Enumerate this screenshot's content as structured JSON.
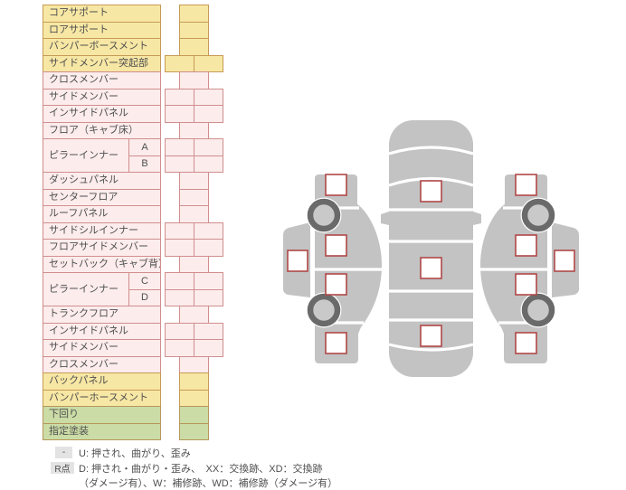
{
  "colors": {
    "yellow_fill": "#F7E7A4",
    "yellow_border": "#C79A56",
    "pink_fill": "#FCECEC",
    "pink_border": "#D18E8E",
    "green_fill": "#CBDCA6",
    "green_border": "#B7975B",
    "car_gray": "#C3C3C3",
    "marker_border": "#B04848",
    "legend_box_bg": "#E3E3E3",
    "text": "#4F4F4F"
  },
  "table": {
    "rows": [
      {
        "label": "コアサポート",
        "color": "yellow",
        "cells": 1
      },
      {
        "label": "ロアサポート",
        "color": "yellow",
        "cells": 1
      },
      {
        "label": "バンパーボースメント",
        "color": "yellow",
        "cells": 1
      },
      {
        "label": "サイドメンバー突起部",
        "color": "yellow",
        "cells": 2
      },
      {
        "label": "クロスメンバー",
        "color": "pink",
        "cells": 1
      },
      {
        "label": "サイドメンバー",
        "color": "pink",
        "cells": 2
      },
      {
        "label": "インサイドパネル",
        "color": "pink",
        "cells": 2
      },
      {
        "label": "フロア（キャブ床）",
        "color": "pink",
        "cells": 1
      },
      {
        "label": "ピラーインナー",
        "color": "pink",
        "cells": 2,
        "subs": [
          "A",
          "B"
        ]
      },
      {
        "label": "ダッシュパネル",
        "color": "pink",
        "cells": 1
      },
      {
        "label": "センターフロア",
        "color": "pink",
        "cells": 1
      },
      {
        "label": "ルーフパネル",
        "color": "pink",
        "cells": 1
      },
      {
        "label": "サイドシルインナー",
        "color": "pink",
        "cells": 2
      },
      {
        "label": "フロアサイドメンバー",
        "color": "pink",
        "cells": 2
      },
      {
        "label": "セットバック（キャブ背）",
        "color": "pink",
        "cells": 1
      },
      {
        "label": "ピラーインナー",
        "color": "pink",
        "cells": 2,
        "subs": [
          "C",
          "D"
        ]
      },
      {
        "label": "トランクフロア",
        "color": "pink",
        "cells": 1
      },
      {
        "label": "インサイドパネル",
        "color": "pink",
        "cells": 2
      },
      {
        "label": "サイドメンバー",
        "color": "pink",
        "cells": 2
      },
      {
        "label": "クロスメンバー",
        "color": "pink",
        "cells": 1
      },
      {
        "label": "バックパネル",
        "color": "yellow",
        "cells": 1
      },
      {
        "label": "バンパーホースメント",
        "color": "yellow",
        "cells": 1
      },
      {
        "label": "下回り",
        "color": "green",
        "cells": 1
      },
      {
        "label": "指定塗装",
        "color": "green",
        "cells": 1
      }
    ]
  },
  "legend": {
    "row1_key": "-",
    "row1_text": "U: 押され、曲がり、歪み",
    "row2_key": "R点",
    "row2_text": "D: 押され・曲がり・歪み、　XX：交換跡、XD：交換跡",
    "row3_text": "（ダメージ有）、W：補修跡、WD：補修跡（ダメージ有）"
  }
}
